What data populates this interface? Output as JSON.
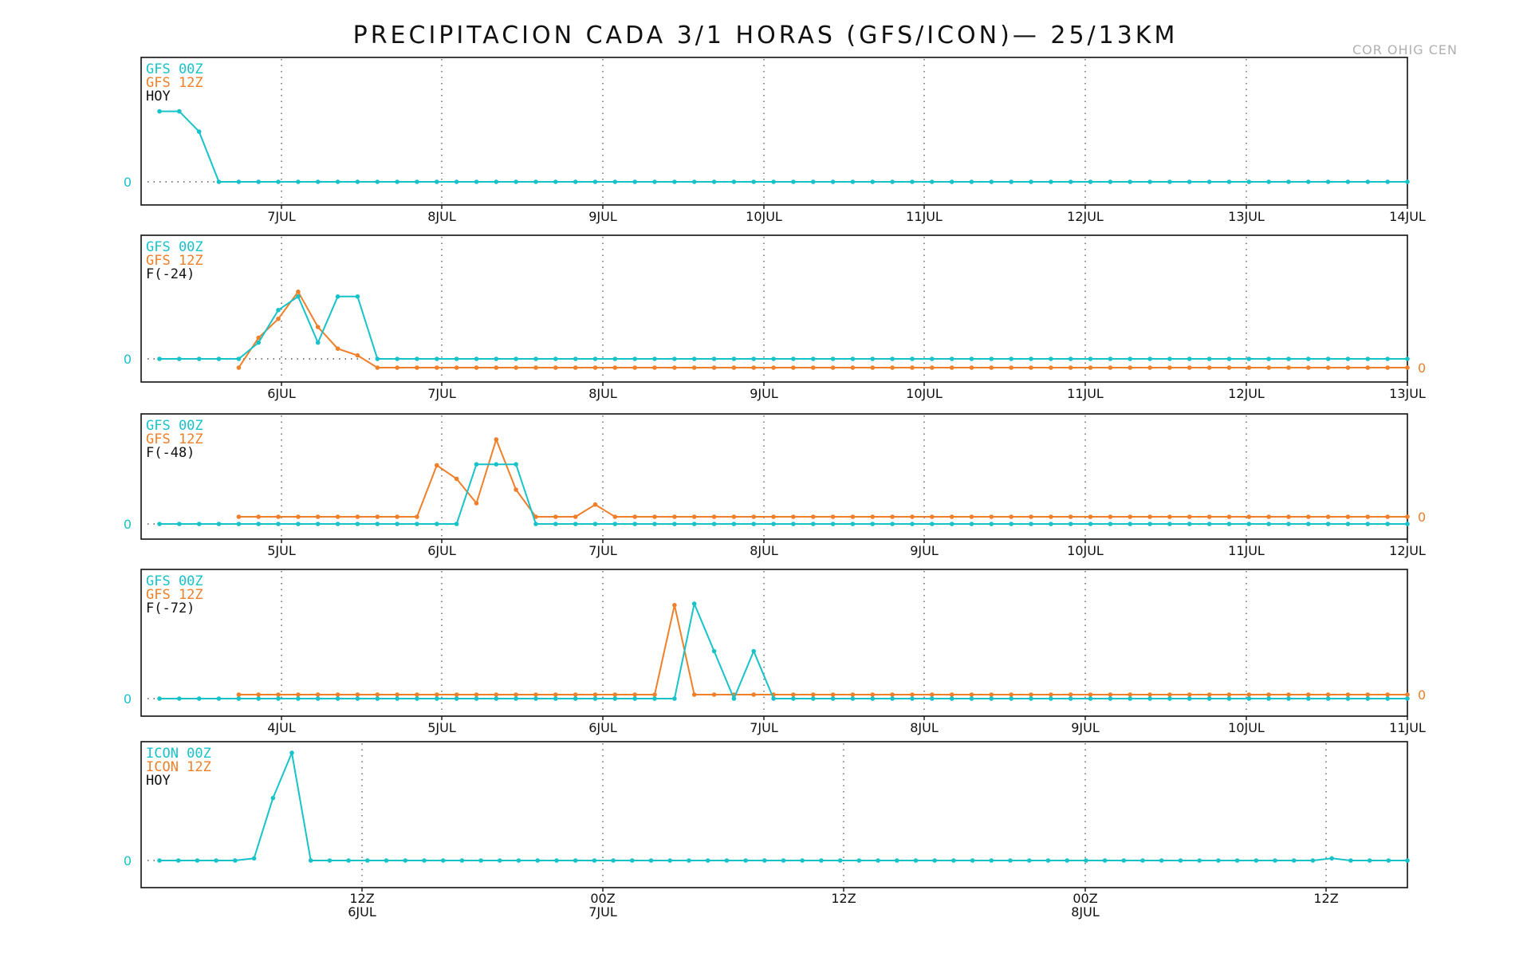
{
  "title": "PRECIPITACION CADA 3/1 HORAS (GFS/ICON)— 25/13KM",
  "corner_label": "COR OHIG CEN",
  "colors": {
    "series_00z": "#17c3c9",
    "series_12z": "#f07f2a",
    "text": "#111111",
    "grid": "#555555"
  },
  "chart_data": [
    {
      "type": "line",
      "legend": [
        "GFS 00Z",
        "GFS 12Z",
        "HOY"
      ],
      "xticks": [
        "7JUL",
        "8JUL",
        "9JUL",
        "10JUL",
        "11JUL",
        "12JUL",
        "13JUL",
        "14JUL"
      ],
      "zero_label_left": "0",
      "zero_label_right": "",
      "grid": "vertical dotted",
      "series": [
        {
          "name": "GFS 00Z",
          "start_index": 0,
          "values": [
            5.2,
            5.2,
            3.7,
            0,
            0,
            0,
            0,
            0,
            0,
            0,
            0,
            0,
            0,
            0,
            0,
            0,
            0,
            0,
            0,
            0,
            0,
            0,
            0,
            0,
            0,
            0,
            0,
            0,
            0,
            0,
            0,
            0,
            0,
            0,
            0,
            0,
            0,
            0,
            0,
            0,
            0,
            0,
            0,
            0,
            0,
            0,
            0,
            0,
            0,
            0,
            0,
            0,
            0,
            0,
            0,
            0,
            0,
            0,
            0,
            0,
            0,
            0,
            0,
            0
          ]
        },
        {
          "name": "GFS 12Z",
          "start_index": 0,
          "values": []
        }
      ]
    },
    {
      "type": "line",
      "legend": [
        "GFS 00Z",
        "GFS 12Z",
        "F(-24)"
      ],
      "xticks": [
        "6JUL",
        "7JUL",
        "8JUL",
        "9JUL",
        "10JUL",
        "11JUL",
        "12JUL",
        "13JUL"
      ],
      "zero_label_left": "0",
      "zero_label_right": "0",
      "grid": "vertical dotted",
      "series": [
        {
          "name": "GFS 00Z",
          "start_index": 0,
          "values": [
            0,
            0,
            0,
            0,
            0,
            1.2,
            3.6,
            4.6,
            1.2,
            4.6,
            4.6,
            0,
            0,
            0,
            0,
            0,
            0,
            0,
            0,
            0,
            0,
            0,
            0,
            0,
            0,
            0,
            0,
            0,
            0,
            0,
            0,
            0,
            0,
            0,
            0,
            0,
            0,
            0,
            0,
            0,
            0,
            0,
            0,
            0,
            0,
            0,
            0,
            0,
            0,
            0,
            0,
            0,
            0,
            0,
            0,
            0,
            0,
            0,
            0,
            0,
            0,
            0,
            0,
            0
          ]
        },
        {
          "name": "GFS 12Z",
          "start_index": 4,
          "values": [
            0,
            2.2,
            3.6,
            5.6,
            3.0,
            1.4,
            0.9,
            0,
            0,
            0,
            0,
            0,
            0,
            0,
            0,
            0,
            0,
            0,
            0,
            0,
            0,
            0,
            0,
            0,
            0,
            0,
            0,
            0,
            0,
            0,
            0,
            0,
            0,
            0,
            0,
            0,
            0,
            0,
            0,
            0,
            0,
            0,
            0,
            0,
            0,
            0,
            0,
            0,
            0,
            0,
            0,
            0,
            0,
            0,
            0,
            0,
            0,
            0,
            0,
            0
          ]
        }
      ]
    },
    {
      "type": "line",
      "legend": [
        "GFS 00Z",
        "GFS 12Z",
        "F(-48)"
      ],
      "xticks": [
        "5JUL",
        "6JUL",
        "7JUL",
        "8JUL",
        "9JUL",
        "10JUL",
        "11JUL",
        "12JUL"
      ],
      "zero_label_left": "0",
      "zero_label_right": "0",
      "grid": "vertical dotted",
      "series": [
        {
          "name": "GFS 00Z",
          "start_index": 0,
          "values": [
            0,
            0,
            0,
            0,
            0,
            0,
            0,
            0,
            0,
            0,
            0,
            0,
            0,
            0,
            0,
            0,
            4.4,
            4.4,
            4.4,
            0,
            0,
            0,
            0,
            0,
            0,
            0,
            0,
            0,
            0,
            0,
            0,
            0,
            0,
            0,
            0,
            0,
            0,
            0,
            0,
            0,
            0,
            0,
            0,
            0,
            0,
            0,
            0,
            0,
            0,
            0,
            0,
            0,
            0,
            0,
            0,
            0,
            0,
            0,
            0,
            0,
            0,
            0,
            0,
            0
          ]
        },
        {
          "name": "GFS 12Z",
          "start_index": 4,
          "values": [
            0,
            0,
            0,
            0,
            0,
            0,
            0,
            0,
            0,
            0,
            3.8,
            2.8,
            1.0,
            5.7,
            2.0,
            0,
            0,
            0,
            0.9,
            0,
            0,
            0,
            0,
            0,
            0,
            0,
            0,
            0,
            0,
            0,
            0,
            0,
            0,
            0,
            0,
            0,
            0,
            0,
            0,
            0,
            0,
            0,
            0,
            0,
            0,
            0,
            0,
            0,
            0,
            0,
            0,
            0,
            0,
            0,
            0,
            0,
            0,
            0,
            0,
            0
          ]
        }
      ]
    },
    {
      "type": "line",
      "legend": [
        "GFS 00Z",
        "GFS 12Z",
        "F(-72)"
      ],
      "xticks": [
        "4JUL",
        "5JUL",
        "6JUL",
        "7JUL",
        "8JUL",
        "9JUL",
        "10JUL",
        "11JUL"
      ],
      "zero_label_left": "0",
      "zero_label_right": "0",
      "grid": "vertical dotted",
      "series": [
        {
          "name": "GFS 00Z",
          "start_index": 0,
          "values": [
            0,
            0,
            0,
            0,
            0,
            0,
            0,
            0,
            0,
            0,
            0,
            0,
            0,
            0,
            0,
            0,
            0,
            0,
            0,
            0,
            0,
            0,
            0,
            0,
            0,
            0,
            0,
            7.0,
            3.5,
            0,
            3.5,
            0,
            0,
            0,
            0,
            0,
            0,
            0,
            0,
            0,
            0,
            0,
            0,
            0,
            0,
            0,
            0,
            0,
            0,
            0,
            0,
            0,
            0,
            0,
            0,
            0,
            0,
            0,
            0,
            0,
            0,
            0,
            0,
            0
          ]
        },
        {
          "name": "GFS 12Z",
          "start_index": 4,
          "values": [
            0,
            0,
            0,
            0,
            0,
            0,
            0,
            0,
            0,
            0,
            0,
            0,
            0,
            0,
            0,
            0,
            0,
            0,
            0,
            0,
            0,
            0,
            6.6,
            0,
            0,
            0,
            0,
            0,
            0,
            0,
            0,
            0,
            0,
            0,
            0,
            0,
            0,
            0,
            0,
            0,
            0,
            0,
            0,
            0,
            0,
            0,
            0,
            0,
            0,
            0,
            0,
            0,
            0,
            0,
            0,
            0,
            0,
            0,
            0,
            0
          ]
        }
      ]
    },
    {
      "type": "line",
      "legend": [
        "ICON 00Z",
        "ICON 12Z",
        "HOY"
      ],
      "xticks": [
        {
          "top": "12Z",
          "bottom": "6JUL"
        },
        {
          "top": "00Z",
          "bottom": "7JUL"
        },
        {
          "top": "12Z",
          "bottom": ""
        },
        {
          "top": "00Z",
          "bottom": "8JUL"
        },
        {
          "top": "12Z",
          "bottom": ""
        }
      ],
      "zero_label_left": "0",
      "zero_label_right": "",
      "grid": "vertical dotted",
      "series": [
        {
          "name": "ICON 00Z",
          "start_index": 0,
          "values": [
            0,
            0,
            0,
            0,
            0,
            0.1,
            2.9,
            5.0,
            0,
            0,
            0,
            0,
            0,
            0,
            0,
            0,
            0,
            0,
            0,
            0,
            0,
            0,
            0,
            0,
            0,
            0,
            0,
            0,
            0,
            0,
            0,
            0,
            0,
            0,
            0,
            0,
            0,
            0,
            0,
            0,
            0,
            0,
            0,
            0,
            0,
            0,
            0,
            0,
            0,
            0,
            0,
            0,
            0,
            0,
            0,
            0,
            0,
            0,
            0,
            0,
            0,
            0,
            0.1,
            0,
            0,
            0,
            0
          ]
        },
        {
          "name": "ICON 12Z",
          "start_index": 0,
          "values": []
        }
      ]
    }
  ]
}
